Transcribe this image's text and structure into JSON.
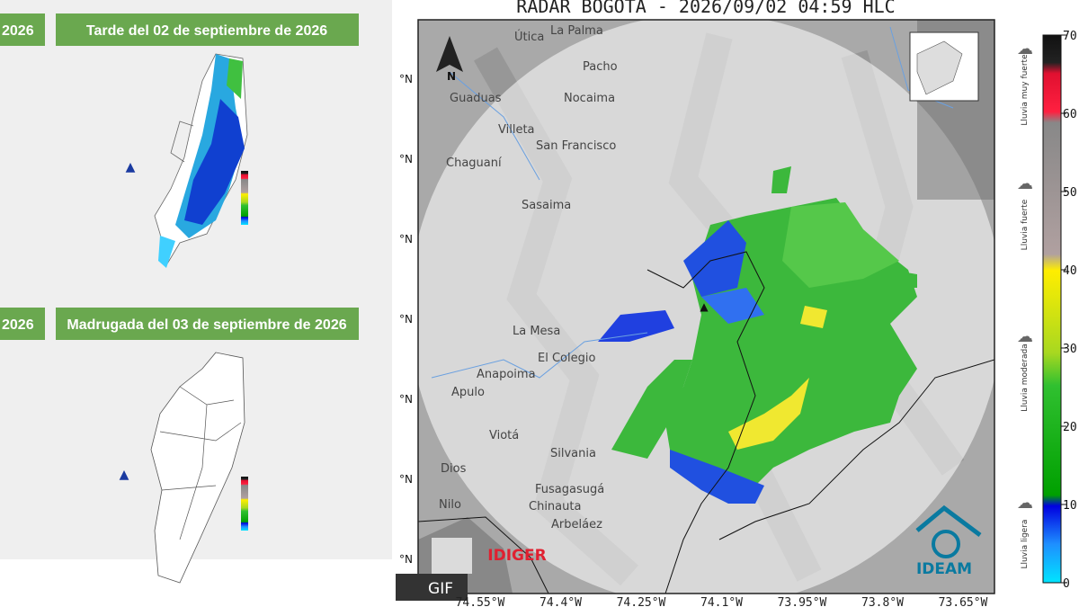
{
  "forecast_panels": [
    {
      "side_label": "2026",
      "title": "Tarde del  02 de septiembre de 2026"
    },
    {
      "side_label": "2026",
      "title": "Madrugada del 03 de septiembre de 2026"
    }
  ],
  "radar": {
    "title": "RADAR BOGOTA - 2026/09/02 04:59 HLC",
    "north_label": "N",
    "lat_labels": [
      "°N",
      "°N",
      "°N",
      "°N",
      "°N",
      "°N",
      "°N"
    ],
    "lon_labels": [
      "74.55°W",
      "74.4°W",
      "74.25°W",
      "74.1°W",
      "73.95°W",
      "73.8°W",
      "73.65°W"
    ],
    "places": [
      "Útica",
      "La Palma",
      "Pacho",
      "Nocaima",
      "Villeta",
      "Guaduas",
      "San Francisco",
      "Chaguaní",
      "Sasaima",
      "La Mesa",
      "El Colegio",
      "Anapoima",
      "Apulo",
      "Viotá",
      "Silvania",
      "Fusagasugá",
      "Chinauta",
      "Arbeláez",
      "Nilo",
      "Dios"
    ],
    "logos": {
      "gif": "GIF",
      "idiger": "IDIGER",
      "ideam": "IDEAM"
    }
  },
  "colorbar": {
    "ticks": [
      0,
      10,
      20,
      30,
      40,
      50,
      60,
      70
    ],
    "categories": [
      "Lluvia ligera",
      "Lluvia moderada",
      "Lluvia fuerte",
      "Lluvia muy fuerte"
    ]
  }
}
